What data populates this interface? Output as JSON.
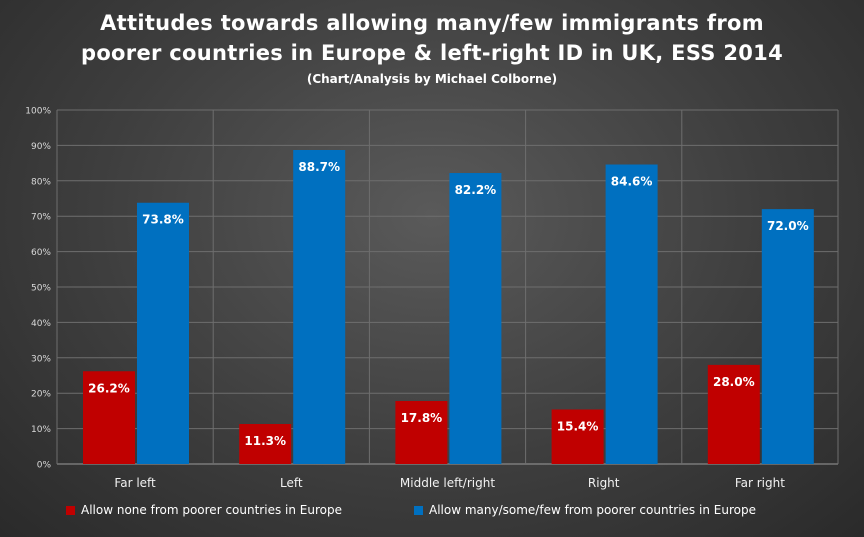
{
  "chart_data": {
    "type": "bar",
    "title_lines": [
      "Attitudes towards allowing many/few immigrants from",
      "poorer countries in Europe & left-right ID in UK, ESS 2014"
    ],
    "subtitle": "(Chart/Analysis  by Michael Colborne)",
    "categories": [
      "Far left",
      "Left",
      "Middle left/right",
      "Right",
      "Far right"
    ],
    "series": [
      {
        "name": "Allow none from poorer countries in Europe",
        "color": "#c00000",
        "values": [
          26.2,
          11.3,
          17.8,
          15.4,
          28.0
        ],
        "labels": [
          "26.2%",
          "11.3%",
          "17.8%",
          "15.4%",
          "28.0%"
        ]
      },
      {
        "name": "Allow many/some/few from poorer countries in Europe",
        "color": "#0070c0",
        "values": [
          73.8,
          88.7,
          82.2,
          84.6,
          72.0
        ],
        "labels": [
          "73.8%",
          "88.7%",
          "82.2%",
          "84.6%",
          "72.0%"
        ]
      }
    ],
    "ylim": [
      0,
      100
    ],
    "yticks": [
      "0%",
      "10%",
      "20%",
      "30%",
      "40%",
      "50%",
      "60%",
      "70%",
      "80%",
      "90%",
      "100%"
    ],
    "grid": true,
    "legend_position": "bottom"
  }
}
